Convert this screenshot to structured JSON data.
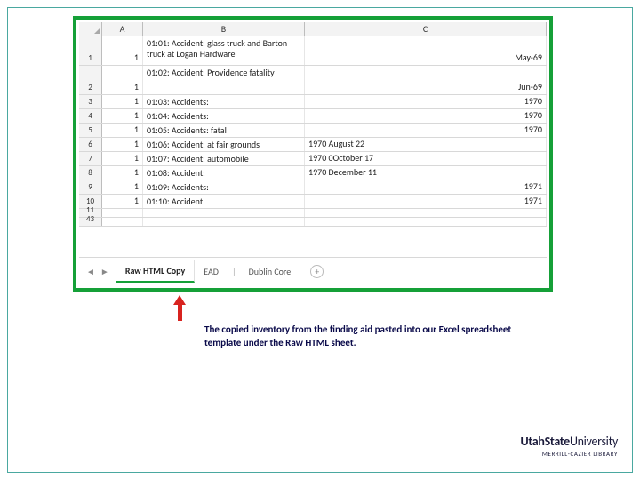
{
  "columns": {
    "A": "A",
    "B": "B",
    "C": "C"
  },
  "rows": [
    {
      "num": "1",
      "h": "tall",
      "a": "1",
      "b": "01:01: Accident: glass truck and Barton truck at Logan Hardware",
      "c": "May-69",
      "align": "right"
    },
    {
      "num": "2",
      "h": "tall",
      "a": "1",
      "b": "01:02: Accident: Providence fatality",
      "c": "Jun-69",
      "align": "right"
    },
    {
      "num": "3",
      "h": "short",
      "a": "1",
      "b": "01:03: Accidents:",
      "c": "1970",
      "align": "right"
    },
    {
      "num": "4",
      "h": "short",
      "a": "1",
      "b": "01:04: Accidents:",
      "c": "1970",
      "align": "right"
    },
    {
      "num": "5",
      "h": "short",
      "a": "1",
      "b": "01:05: Accidents: fatal",
      "c": "1970",
      "align": "right"
    },
    {
      "num": "6",
      "h": "short",
      "a": "1",
      "b": "01:06: Accident: at fair grounds",
      "c": "1970 August 22",
      "align": "left"
    },
    {
      "num": "7",
      "h": "short",
      "a": "1",
      "b": "01:07: Accident: automobile",
      "c": "1970 0October 17",
      "align": "left"
    },
    {
      "num": "8",
      "h": "short",
      "a": "1",
      "b": "01:08: Accident:",
      "c": "1970 December 11",
      "align": "left"
    },
    {
      "num": "9",
      "h": "short",
      "a": "1",
      "b": "01:09: Accidents:",
      "c": "1971",
      "align": "right"
    },
    {
      "num": "10",
      "h": "short",
      "a": "1",
      "b": "01:10: Accident",
      "c": "1971",
      "align": "right"
    },
    {
      "num": "11",
      "h": "tiny",
      "a": "",
      "b": "",
      "c": "",
      "align": "left"
    },
    {
      "num": "43",
      "h": "tiny",
      "a": "",
      "b": "",
      "c": "",
      "align": "left"
    }
  ],
  "tabs": {
    "active": "Raw HTML Copy",
    "t2": "EAD",
    "t3": "Dublin Core"
  },
  "caption": "The copied inventory from the finding aid pasted into our Excel spreadsheet template under the Raw HTML sheet.",
  "logo": {
    "p1": "UtahState",
    "p2": "University",
    "sub": "MERRILL-CAZIER LIBRARY"
  },
  "colors": {
    "green_border": "#15a038",
    "teal_frame": "#4aa8a0",
    "arrow": "#d8231f",
    "caption": "#0a0a4a"
  }
}
